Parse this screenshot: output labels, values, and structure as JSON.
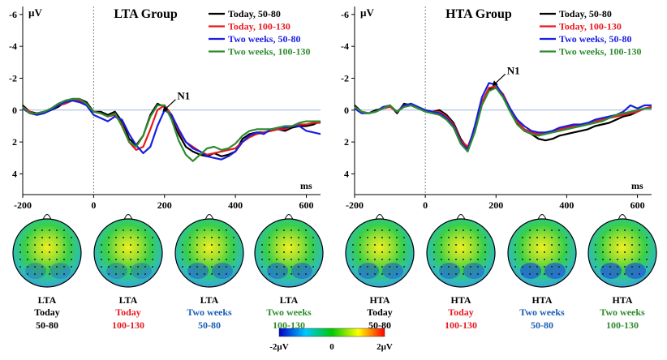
{
  "chart_data": [
    {
      "type": "line",
      "title": "LTA Group",
      "ylabel": "µV",
      "xlabel": "ms",
      "xlim": [
        -200,
        640
      ],
      "ylim": [
        -6.5,
        5.3
      ],
      "y_inverted": true,
      "xticks": [
        -200,
        0,
        200,
        400,
        600
      ],
      "yticks": [
        -6,
        -4,
        -2,
        0,
        2,
        4
      ],
      "annotation": "N1",
      "annotation_at": [
        190,
        0.2
      ],
      "legend_position": "top-right",
      "series": [
        {
          "name": "Today, 50-80",
          "color": "#000000",
          "x": [
            -200,
            -180,
            -160,
            -140,
            -120,
            -100,
            -80,
            -60,
            -40,
            -20,
            0,
            20,
            40,
            60,
            80,
            100,
            120,
            140,
            160,
            180,
            200,
            220,
            240,
            260,
            280,
            300,
            320,
            340,
            360,
            380,
            400,
            420,
            440,
            460,
            480,
            500,
            520,
            540,
            560,
            580,
            600,
            620,
            640
          ],
          "y": [
            -0.3,
            0.1,
            0.2,
            0.1,
            0,
            -0.2,
            -0.5,
            -0.7,
            -0.7,
            -0.5,
            0.1,
            0.1,
            0.3,
            0.1,
            0.7,
            1.8,
            2.2,
            1.6,
            0.3,
            -0.4,
            -0.2,
            0.5,
            1.5,
            2.3,
            2.6,
            2.8,
            2.9,
            2.7,
            2.9,
            2.8,
            2.6,
            1.8,
            1.5,
            1.4,
            1.4,
            1.3,
            1.2,
            1.3,
            1.1,
            1.0,
            1.0,
            0.9,
            0.7
          ]
        },
        {
          "name": "Today, 100-130",
          "color": "#e8191e",
          "x": [
            -200,
            -180,
            -160,
            -140,
            -120,
            -100,
            -80,
            -60,
            -40,
            -20,
            0,
            20,
            40,
            60,
            80,
            100,
            120,
            140,
            160,
            180,
            200,
            220,
            240,
            260,
            280,
            300,
            320,
            340,
            360,
            380,
            400,
            420,
            440,
            460,
            480,
            500,
            520,
            540,
            560,
            580,
            600,
            620,
            640
          ],
          "y": [
            -0.2,
            0.1,
            0.3,
            0.2,
            -0.1,
            -0.3,
            -0.4,
            -0.6,
            -0.6,
            -0.3,
            0.1,
            0.2,
            0.4,
            0.3,
            0.9,
            2.0,
            2.5,
            2.3,
            1.2,
            0,
            -0.3,
            0.3,
            1.3,
            2.0,
            2.3,
            2.6,
            2.8,
            2.7,
            2.6,
            2.5,
            2.4,
            2.0,
            1.7,
            1.5,
            1.4,
            1.3,
            1.2,
            1.2,
            1.0,
            0.9,
            0.9,
            0.8,
            0.8
          ]
        },
        {
          "name": "Two weeks, 50-80",
          "color": "#1a1ee0",
          "x": [
            -200,
            -180,
            -160,
            -140,
            -120,
            -100,
            -80,
            -60,
            -40,
            -20,
            0,
            20,
            40,
            60,
            80,
            100,
            120,
            140,
            160,
            180,
            200,
            220,
            240,
            260,
            280,
            300,
            320,
            340,
            360,
            380,
            400,
            420,
            440,
            460,
            480,
            500,
            520,
            540,
            560,
            580,
            600,
            620,
            640
          ],
          "y": [
            -0.1,
            0.2,
            0.3,
            0.2,
            0,
            -0.3,
            -0.5,
            -0.6,
            -0.5,
            -0.3,
            0.3,
            0.5,
            0.7,
            0.4,
            0.6,
            1.5,
            2.2,
            2.7,
            2.3,
            1.0,
            0,
            0.3,
            1.2,
            2.0,
            2.4,
            2.6,
            2.9,
            3.0,
            3.1,
            2.9,
            2.6,
            2.0,
            1.6,
            1.4,
            1.5,
            1.2,
            1.1,
            1.1,
            1.0,
            1.0,
            1.3,
            1.4,
            1.5
          ]
        },
        {
          "name": "Two weeks, 100-130",
          "color": "#2e8b2e",
          "x": [
            -200,
            -180,
            -160,
            -140,
            -120,
            -100,
            -80,
            -60,
            -40,
            -20,
            0,
            20,
            40,
            60,
            80,
            100,
            120,
            140,
            160,
            180,
            200,
            220,
            240,
            260,
            280,
            300,
            320,
            340,
            360,
            380,
            400,
            420,
            440,
            460,
            480,
            500,
            520,
            540,
            560,
            580,
            600,
            620,
            640
          ],
          "y": [
            -0.2,
            0.2,
            0.2,
            0.1,
            -0.1,
            -0.4,
            -0.6,
            -0.7,
            -0.7,
            -0.4,
            0.1,
            0.2,
            0.4,
            0.2,
            1.0,
            2.0,
            2.3,
            1.6,
            0.4,
            -0.3,
            -0.3,
            0.6,
            1.9,
            2.8,
            3.2,
            2.8,
            2.4,
            2.3,
            2.5,
            2.4,
            2.1,
            1.6,
            1.3,
            1.2,
            1.2,
            1.2,
            1.1,
            1.0,
            1.0,
            0.8,
            0.7,
            0.7,
            0.7
          ]
        }
      ],
      "topomaps": [
        {
          "group": "LTA",
          "condition": "Today",
          "range": "50-80",
          "color": "#000000"
        },
        {
          "group": "LTA",
          "condition": "Today",
          "range": "100-130",
          "color": "#e8191e"
        },
        {
          "group": "LTA",
          "condition": "Two weeks",
          "range": "50-80",
          "color": "#1a5fb4"
        },
        {
          "group": "LTA",
          "condition": "Two weeks",
          "range": "100-130",
          "color": "#2e8b2e"
        }
      ]
    },
    {
      "type": "line",
      "title": "HTA Group",
      "ylabel": "µV",
      "xlabel": "ms",
      "xlim": [
        -200,
        640
      ],
      "ylim": [
        -6.5,
        5.3
      ],
      "y_inverted": true,
      "xticks": [
        -200,
        0,
        200,
        400,
        600
      ],
      "yticks": [
        -6,
        -4,
        -2,
        0,
        2,
        4
      ],
      "annotation": "N1",
      "annotation_at": [
        185,
        -1.4
      ],
      "legend_position": "top-right",
      "series": [
        {
          "name": "Today, 50-80",
          "color": "#000000",
          "x": [
            -200,
            -180,
            -160,
            -140,
            -120,
            -100,
            -80,
            -60,
            -40,
            -20,
            0,
            20,
            40,
            60,
            80,
            100,
            120,
            140,
            160,
            180,
            200,
            220,
            240,
            260,
            280,
            300,
            320,
            340,
            360,
            380,
            400,
            420,
            440,
            460,
            480,
            500,
            520,
            540,
            560,
            580,
            600,
            620,
            640
          ],
          "y": [
            -0.3,
            0.1,
            0.2,
            0,
            -0.1,
            -0.3,
            0.2,
            -0.4,
            -0.3,
            -0.1,
            0,
            0.1,
            0,
            0.3,
            0.8,
            1.8,
            2.4,
            1.3,
            -0.4,
            -1.3,
            -1.4,
            -0.9,
            0,
            0.8,
            1.3,
            1.5,
            1.8,
            1.9,
            1.8,
            1.6,
            1.5,
            1.4,
            1.3,
            1.2,
            1.0,
            0.9,
            0.8,
            0.6,
            0.4,
            0.3,
            0.1,
            -0.1,
            -0.2
          ]
        },
        {
          "name": "Today, 100-130",
          "color": "#e8191e",
          "x": [
            -200,
            -180,
            -160,
            -140,
            -120,
            -100,
            -80,
            -60,
            -40,
            -20,
            0,
            20,
            40,
            60,
            80,
            100,
            120,
            140,
            160,
            180,
            200,
            220,
            240,
            260,
            280,
            300,
            320,
            340,
            360,
            380,
            400,
            420,
            440,
            460,
            480,
            500,
            520,
            540,
            560,
            580,
            600,
            620,
            640
          ],
          "y": [
            -0.2,
            0.1,
            0.2,
            0.1,
            -0.1,
            -0.2,
            0.1,
            -0.3,
            -0.4,
            -0.1,
            0,
            0.1,
            0.1,
            0.4,
            0.9,
            1.9,
            2.3,
            1.2,
            -0.5,
            -1.4,
            -1.5,
            -1.0,
            -0.1,
            0.7,
            1.2,
            1.4,
            1.5,
            1.4,
            1.3,
            1.2,
            1.1,
            1.0,
            0.9,
            0.8,
            0.7,
            0.6,
            0.5,
            0.4,
            0.3,
            0.2,
            0.1,
            -0.1,
            -0.2
          ]
        },
        {
          "name": "Two weeks, 50-80",
          "color": "#1a1ee0",
          "x": [
            -200,
            -180,
            -160,
            -140,
            -120,
            -100,
            -80,
            -60,
            -40,
            -20,
            0,
            20,
            40,
            60,
            80,
            100,
            120,
            140,
            160,
            180,
            200,
            220,
            240,
            260,
            280,
            300,
            320,
            340,
            360,
            380,
            400,
            420,
            440,
            460,
            480,
            500,
            520,
            540,
            560,
            580,
            600,
            620,
            640
          ],
          "y": [
            -0.1,
            0.2,
            0.2,
            0.1,
            -0.2,
            -0.3,
            0.1,
            -0.3,
            -0.4,
            -0.2,
            0,
            0.1,
            0.2,
            0.5,
            1.0,
            2.0,
            2.5,
            1.0,
            -0.8,
            -1.7,
            -1.6,
            -0.9,
            -0.1,
            0.6,
            1.0,
            1.3,
            1.4,
            1.4,
            1.3,
            1.1,
            1.0,
            0.9,
            0.9,
            0.8,
            0.6,
            0.5,
            0.4,
            0.3,
            0.1,
            -0.3,
            -0.1,
            -0.3,
            -0.3
          ]
        },
        {
          "name": "Two weeks, 100-130",
          "color": "#2e8b2e",
          "x": [
            -200,
            -180,
            -160,
            -140,
            -120,
            -100,
            -80,
            -60,
            -40,
            -20,
            0,
            20,
            40,
            60,
            80,
            100,
            120,
            140,
            160,
            180,
            200,
            220,
            240,
            260,
            280,
            300,
            320,
            340,
            360,
            380,
            400,
            420,
            440,
            460,
            480,
            500,
            520,
            540,
            560,
            580,
            600,
            620,
            640
          ],
          "y": [
            -0.2,
            0.1,
            0.2,
            0.1,
            -0.1,
            -0.3,
            0.1,
            -0.2,
            -0.3,
            -0.1,
            0.1,
            0.2,
            0.3,
            0.6,
            1.1,
            2.1,
            2.6,
            1.4,
            -0.3,
            -1.2,
            -1.4,
            -0.8,
            0.1,
            0.9,
            1.3,
            1.5,
            1.6,
            1.5,
            1.4,
            1.3,
            1.2,
            1.1,
            1.0,
            0.9,
            0.8,
            0.7,
            0.5,
            0.3,
            0.2,
            0.1,
            0,
            -0.1,
            -0.1
          ]
        }
      ],
      "topomaps": [
        {
          "group": "HTA",
          "condition": "Today",
          "range": "50-80",
          "color": "#000000"
        },
        {
          "group": "HTA",
          "condition": "Today",
          "range": "100-130",
          "color": "#e8191e"
        },
        {
          "group": "HTA",
          "condition": "Two weeks",
          "range": "50-80",
          "color": "#1a5fb4"
        },
        {
          "group": "HTA",
          "condition": "Two weeks",
          "range": "100-130",
          "color": "#2e8b2e"
        }
      ]
    }
  ],
  "colorbar": {
    "type": "heatmap",
    "labels": [
      "-2µV",
      "0",
      "2µV"
    ],
    "range": [
      -2,
      2
    ],
    "colors": [
      "#0000c8",
      "#00c8ff",
      "#00c800",
      "#ffff00",
      "#ff0000"
    ]
  },
  "style": {
    "zero_line_color": "#9fb3d9",
    "onset_line_color": "#888888"
  }
}
